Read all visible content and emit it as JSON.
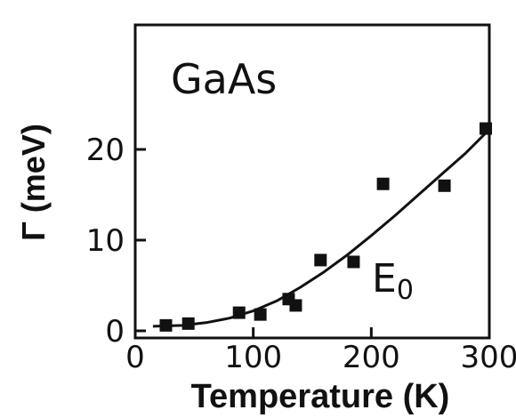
{
  "chart_data": {
    "type": "scatter",
    "title": "",
    "xlabel": "Temperature (K)",
    "ylabel": "Γ (meV)",
    "xlim": [
      0,
      300
    ],
    "ylim": [
      0,
      30
    ],
    "x_ticks": [
      "0",
      "100",
      "200",
      "300"
    ],
    "y_ticks": [
      "0",
      "10",
      "20"
    ],
    "annotations": {
      "material": "GaAs",
      "transition": "E",
      "transition_sub": "0"
    },
    "grid": false,
    "legend": "none",
    "series": [
      {
        "kind": "points",
        "marker": "square",
        "x": [
          26,
          45,
          88,
          106,
          130,
          136,
          157,
          185,
          210,
          262,
          297
        ],
        "y": [
          0.6,
          0.8,
          2.0,
          1.8,
          3.5,
          2.8,
          7.8,
          7.6,
          16.2,
          16.0,
          22.3
        ]
      },
      {
        "kind": "fit-line",
        "x": [
          15,
          40,
          60,
          80,
          100,
          120,
          140,
          160,
          180,
          200,
          220,
          240,
          260,
          280,
          297
        ],
        "y": [
          0.5,
          0.6,
          0.9,
          1.4,
          2.2,
          3.3,
          4.8,
          6.5,
          8.4,
          10.5,
          12.7,
          15.0,
          17.3,
          19.6,
          21.8
        ]
      }
    ],
    "colors": {
      "ink": "#111111",
      "background": "#ffffff"
    }
  }
}
